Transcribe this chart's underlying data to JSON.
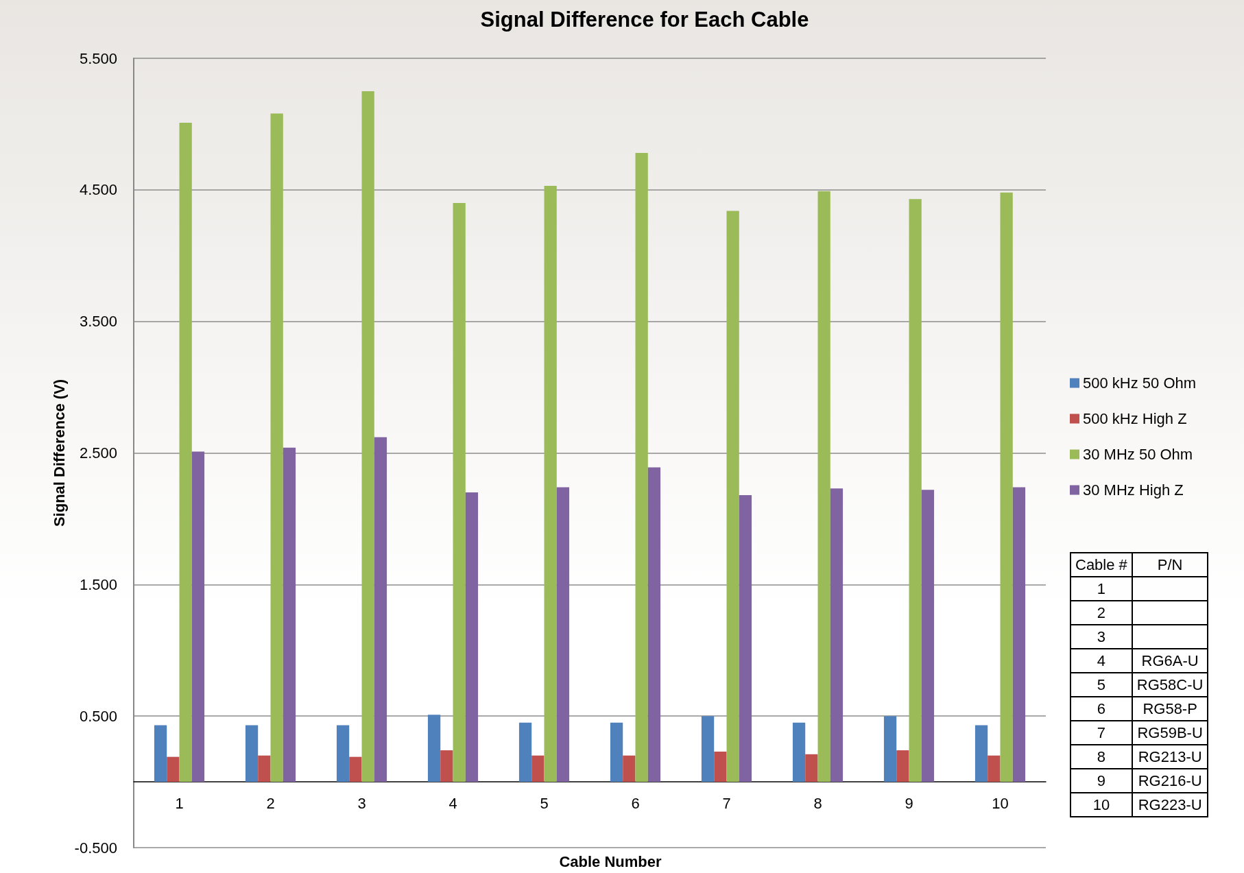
{
  "chart_data": {
    "type": "bar",
    "title": "Signal Difference for Each Cable",
    "xlabel": "Cable Number",
    "ylabel": "Signal Difference (V)",
    "categories": [
      "1",
      "2",
      "3",
      "4",
      "5",
      "6",
      "7",
      "8",
      "9",
      "10"
    ],
    "series": [
      {
        "name": "500 kHz 50 Ohm",
        "color": "#4f81bd",
        "values": [
          0.43,
          0.43,
          0.43,
          0.51,
          0.45,
          0.45,
          0.5,
          0.45,
          0.5,
          0.43
        ]
      },
      {
        "name": "500 kHz High Z",
        "color": "#c0504d",
        "values": [
          0.19,
          0.2,
          0.19,
          0.24,
          0.2,
          0.2,
          0.23,
          0.21,
          0.24,
          0.2
        ]
      },
      {
        "name": "30 MHz 50 Ohm",
        "color": "#9bbb59",
        "values": [
          5.01,
          5.08,
          5.25,
          4.4,
          4.53,
          4.78,
          4.34,
          4.49,
          4.43,
          4.48
        ]
      },
      {
        "name": "30 MHz High Z",
        "color": "#8064a2",
        "values": [
          2.51,
          2.54,
          2.62,
          2.2,
          2.24,
          2.39,
          2.18,
          2.23,
          2.22,
          2.24
        ]
      }
    ],
    "ylim": [
      -0.5,
      5.5
    ],
    "yticks": [
      {
        "value": -0.5,
        "label": "-0.500"
      },
      {
        "value": 0.5,
        "label": "0.500"
      },
      {
        "value": 1.5,
        "label": "1.500"
      },
      {
        "value": 2.5,
        "label": "2.500"
      },
      {
        "value": 3.5,
        "label": "3.500"
      },
      {
        "value": 4.5,
        "label": "4.500"
      },
      {
        "value": 5.5,
        "label": "5.500"
      }
    ],
    "grid": "y",
    "legend": "right",
    "annotations": [
      "Cable #",
      "P/N",
      "1",
      "2",
      "3",
      "4",
      "RG6A-U",
      "5",
      "RG58C-U",
      "6",
      "RG58-P",
      "7",
      "RG59B-U",
      "8",
      "RG213-U",
      "9",
      "RG216-U",
      "10",
      "RG223-U"
    ]
  }
}
